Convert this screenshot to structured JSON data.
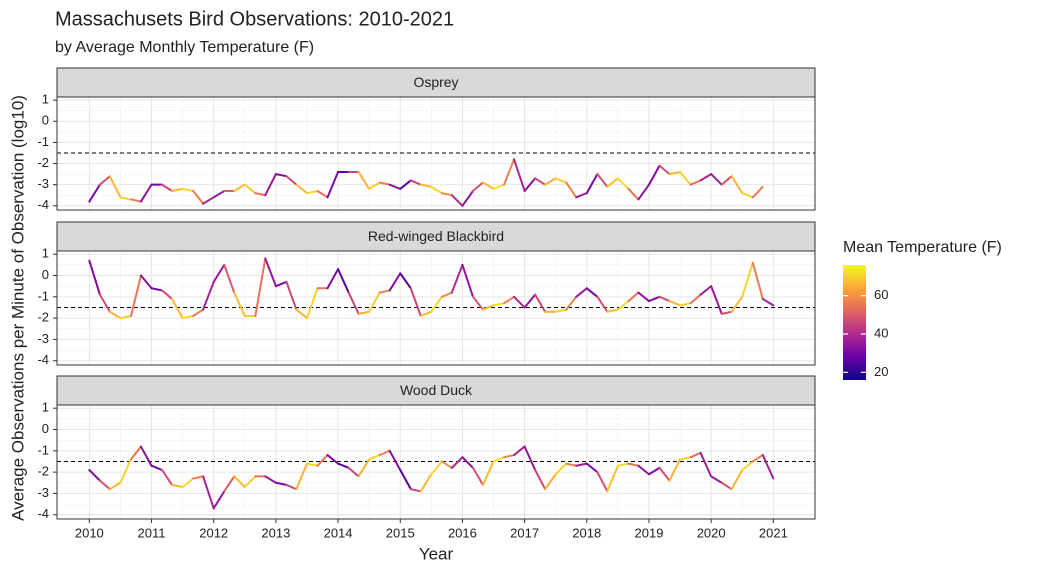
{
  "chart_data": {
    "type": "line",
    "title": "Massachusets Bird Observations: 2010-2021",
    "subtitle": "by Average Monthly Temperature (F)",
    "xlabel": "Year",
    "ylabel": "Average Observations per Minute of Observation (log10)",
    "x": [
      2010,
      2010.17,
      2010.33,
      2010.5,
      2010.67,
      2010.83,
      2011,
      2011.17,
      2011.33,
      2011.5,
      2011.67,
      2011.83,
      2012,
      2012.17,
      2012.33,
      2012.5,
      2012.67,
      2012.83,
      2013,
      2013.17,
      2013.33,
      2013.5,
      2013.67,
      2013.83,
      2014,
      2014.17,
      2014.33,
      2014.5,
      2014.67,
      2014.83,
      2015,
      2015.17,
      2015.33,
      2015.5,
      2015.67,
      2015.83,
      2016,
      2016.17,
      2016.33,
      2016.5,
      2016.67,
      2016.83,
      2017,
      2017.17,
      2017.33,
      2017.5,
      2017.67,
      2017.83,
      2018,
      2018.17,
      2018.33,
      2018.5,
      2018.67,
      2018.83,
      2019,
      2019.17,
      2019.33,
      2019.5,
      2019.67,
      2019.83,
      2020,
      2020.17,
      2020.33,
      2020.5,
      2020.67,
      2020.83,
      2021
    ],
    "temperature": [
      24,
      38,
      58,
      75,
      66,
      45,
      22,
      36,
      57,
      76,
      67,
      46,
      30,
      40,
      60,
      74,
      65,
      44,
      27,
      35,
      57,
      75,
      66,
      43,
      20,
      33,
      58,
      73,
      67,
      47,
      18,
      32,
      59,
      74,
      68,
      50,
      29,
      39,
      58,
      76,
      69,
      46,
      31,
      37,
      56,
      74,
      67,
      48,
      25,
      36,
      60,
      76,
      68,
      42,
      26,
      37,
      57,
      75,
      66,
      42,
      32,
      39,
      57,
      76,
      66,
      47,
      28
    ],
    "facets": [
      {
        "name": "Osprey",
        "values": [
          -3.8,
          -3.0,
          -2.6,
          -3.6,
          -3.7,
          -3.8,
          -3.0,
          -3.0,
          -3.3,
          -3.2,
          -3.3,
          -3.9,
          -3.6,
          -3.3,
          -3.3,
          -3.0,
          -3.4,
          -3.5,
          -2.5,
          -2.6,
          -3.0,
          -3.4,
          -3.3,
          -3.6,
          -2.4,
          -2.4,
          -2.4,
          -3.2,
          -2.9,
          -3.0,
          -3.2,
          -2.8,
          -3.0,
          -3.1,
          -3.4,
          -3.5,
          -4.0,
          -3.3,
          -2.9,
          -3.2,
          -3.0,
          -1.8,
          -3.3,
          -2.7,
          -3.0,
          -2.7,
          -2.9,
          -3.6,
          -3.4,
          -2.5,
          -3.1,
          -2.7,
          -3.2,
          -3.7,
          -3.0,
          -2.1,
          -2.5,
          -2.4,
          -3.0,
          -2.8,
          -2.5,
          -3.0,
          -2.6,
          -3.4,
          -3.6,
          -3.1,
          null
        ]
      },
      {
        "name": "Red-winged Blackbird",
        "values": [
          0.7,
          -0.9,
          -1.7,
          -2.0,
          -1.9,
          0.0,
          -0.6,
          -0.7,
          -1.1,
          -2.0,
          -1.9,
          -1.6,
          -0.3,
          0.5,
          -0.8,
          -1.9,
          -1.9,
          0.8,
          -0.5,
          -0.3,
          -1.6,
          -2.0,
          -0.6,
          -0.6,
          0.3,
          -0.8,
          -1.8,
          -1.7,
          -0.8,
          -0.7,
          0.1,
          -0.6,
          -1.9,
          -1.7,
          -1.0,
          -0.8,
          0.5,
          -1.0,
          -1.6,
          -1.4,
          -1.3,
          -1.0,
          -1.5,
          -0.9,
          -1.7,
          -1.7,
          -1.6,
          -1.0,
          -0.6,
          -1.0,
          -1.7,
          -1.6,
          -1.2,
          -0.8,
          -1.2,
          -1.0,
          -1.2,
          -1.4,
          -1.3,
          -0.9,
          -0.5,
          -1.8,
          -1.7,
          -1.0,
          0.6,
          -1.1,
          -1.4
        ]
      },
      {
        "name": "Wood Duck",
        "values": [
          -1.9,
          -2.4,
          -2.8,
          -2.5,
          -1.4,
          -0.8,
          -1.7,
          -1.9,
          -2.6,
          -2.7,
          -2.3,
          -2.2,
          -3.7,
          -2.9,
          -2.2,
          -2.7,
          -2.2,
          -2.2,
          -2.5,
          -2.6,
          -2.8,
          -1.6,
          -1.7,
          -1.2,
          -1.6,
          -1.8,
          -2.2,
          -1.4,
          -1.2,
          -1.0,
          -1.9,
          -2.8,
          -2.9,
          -2.1,
          -1.5,
          -1.8,
          -1.3,
          -1.8,
          -2.6,
          -1.5,
          -1.3,
          -1.2,
          -0.8,
          -1.9,
          -2.8,
          -2.1,
          -1.6,
          -1.7,
          -1.6,
          -2.0,
          -2.9,
          -1.7,
          -1.6,
          -1.7,
          -2.1,
          -1.8,
          -2.4,
          -1.4,
          -1.3,
          -1.1,
          -2.2,
          -2.5,
          -2.8,
          -1.9,
          -1.5,
          -1.2,
          -2.3
        ]
      }
    ],
    "xlim": [
      2009.48,
      2021.67
    ],
    "xticks": [
      2010,
      2011,
      2012,
      2013,
      2014,
      2015,
      2016,
      2017,
      2018,
      2019,
      2020,
      2021
    ],
    "ylim": [
      -4.2,
      1.15
    ],
    "yticks": [
      1,
      0,
      -1,
      -2,
      -3,
      -4
    ],
    "hline": -1.5,
    "grid": true,
    "colorbar": {
      "title": "Mean Temperature (F)",
      "lim": [
        16,
        76
      ],
      "ticks": [
        20,
        40,
        60
      ]
    },
    "colorscale": [
      "#0d0887",
      "#6a00a8",
      "#b12a90",
      "#e16462",
      "#fca636",
      "#f0f921"
    ]
  }
}
